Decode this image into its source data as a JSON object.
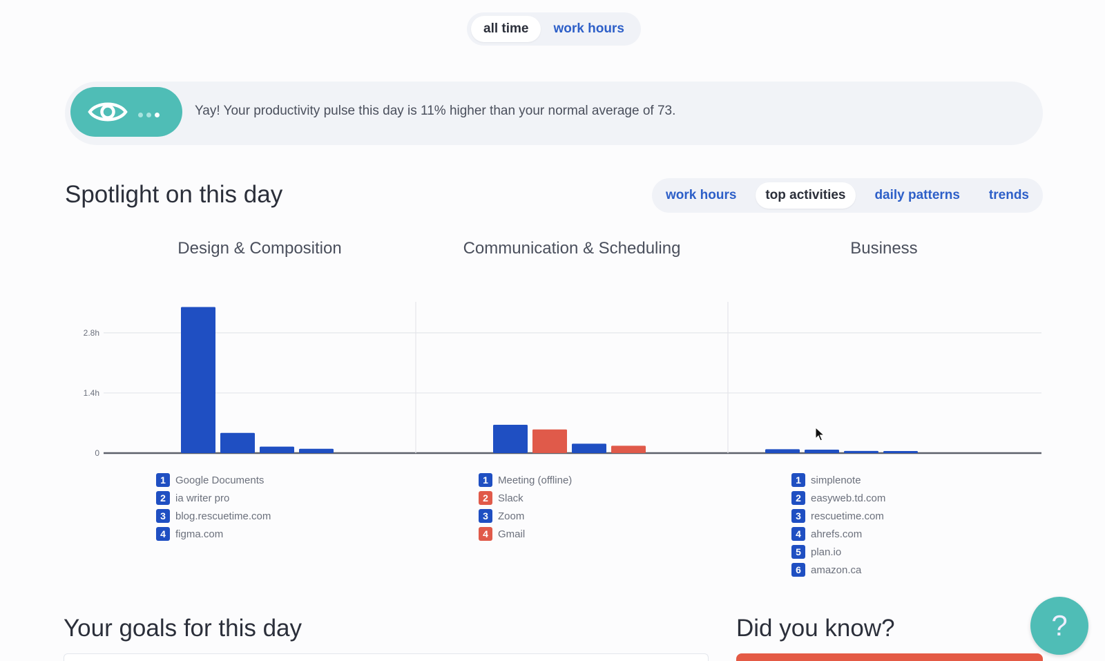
{
  "top_toggle": {
    "all_time": "all time",
    "work_hours": "work hours"
  },
  "pulse": {
    "message": "Yay! Your productivity pulse this day is 11% higher than your normal average of 73."
  },
  "spotlight": {
    "title": "Spotlight on this day",
    "tabs": [
      "work hours",
      "top activities",
      "daily patterns",
      "trends"
    ],
    "active_tab": "top activities"
  },
  "colors": {
    "accent_teal": "#4fbdb6",
    "bar_blue": "#1f4fc2",
    "bar_red": "#e05a4a",
    "link_blue": "#2d5fc8"
  },
  "chart_data": {
    "type": "bar",
    "y_ticks": [
      "0",
      "1.4h",
      "2.8h"
    ],
    "ylim": [
      0,
      3.5
    ],
    "groups": [
      {
        "title": "Design & Composition",
        "items": [
          {
            "rank": "1",
            "name": "Google Documents",
            "value": 3.4,
            "kind": "productive"
          },
          {
            "rank": "2",
            "name": "ia writer pro",
            "value": 0.47,
            "kind": "productive"
          },
          {
            "rank": "3",
            "name": "blog.rescuetime.com",
            "value": 0.15,
            "kind": "productive"
          },
          {
            "rank": "4",
            "name": "figma.com",
            "value": 0.1,
            "kind": "productive"
          }
        ]
      },
      {
        "title": "Communication & Scheduling",
        "items": [
          {
            "rank": "1",
            "name": "Meeting (offline)",
            "value": 0.66,
            "kind": "productive"
          },
          {
            "rank": "2",
            "name": "Slack",
            "value": 0.55,
            "kind": "distracting"
          },
          {
            "rank": "3",
            "name": "Zoom",
            "value": 0.22,
            "kind": "productive"
          },
          {
            "rank": "4",
            "name": "Gmail",
            "value": 0.17,
            "kind": "distracting"
          }
        ]
      },
      {
        "title": "Business",
        "items": [
          {
            "rank": "1",
            "name": "simplenote",
            "value": 0.09,
            "kind": "productive"
          },
          {
            "rank": "2",
            "name": "easyweb.td.com",
            "value": 0.08,
            "kind": "productive"
          },
          {
            "rank": "3",
            "name": "rescuetime.com",
            "value": 0.05,
            "kind": "productive"
          },
          {
            "rank": "4",
            "name": "ahrefs.com",
            "value": 0.04,
            "kind": "productive"
          },
          {
            "rank": "5",
            "name": "plan.io",
            "value": 0,
            "kind": "productive"
          },
          {
            "rank": "6",
            "name": "amazon.ca",
            "value": 0,
            "kind": "productive"
          }
        ]
      }
    ]
  },
  "goals": {
    "title": "Your goals for this day"
  },
  "did_you_know": {
    "title": "Did you know?"
  },
  "help": {
    "label": "?"
  }
}
